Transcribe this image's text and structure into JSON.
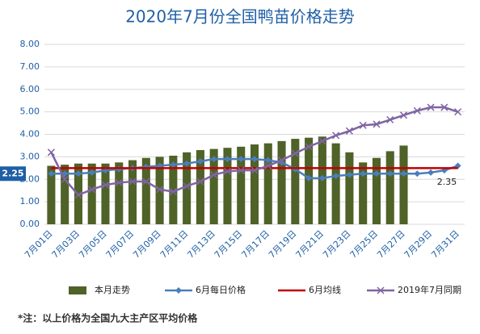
{
  "chart_data": {
    "type": "bar",
    "title": "2020年7月份全国鸭苗价格走势",
    "categories": [
      "7月01日",
      null,
      "7月03日",
      null,
      "7月05日",
      null,
      "7月07日",
      null,
      "7月09日",
      null,
      "7月11日",
      null,
      "7月13日",
      null,
      "7月15日",
      null,
      "7月17日",
      null,
      "7月19日",
      null,
      "7月21日",
      null,
      "7月23日",
      null,
      "7月25日",
      null,
      "7月27日",
      null,
      "7月29日",
      null,
      "7月31日"
    ],
    "ylim": [
      0,
      8
    ],
    "yticks": [
      {
        "value": 0,
        "label": "0.00"
      },
      {
        "value": 1,
        "label": "1.00"
      },
      {
        "value": 2,
        "label": "2.00"
      },
      {
        "value": 3,
        "label": "3.00"
      },
      {
        "value": 4,
        "label": "4.00"
      },
      {
        "value": 5,
        "label": "5.00"
      },
      {
        "value": 6,
        "label": "6.00"
      },
      {
        "value": 7,
        "label": "7.00"
      },
      {
        "value": 8,
        "label": "8.00"
      }
    ],
    "grid": true,
    "legend": "bottom",
    "series": [
      {
        "name": "本月走势",
        "type": "bar",
        "color": "#4f6228",
        "values": [
          2.6,
          2.65,
          2.7,
          2.7,
          2.7,
          2.75,
          2.85,
          2.95,
          3.0,
          3.05,
          3.2,
          3.3,
          3.35,
          3.4,
          3.45,
          3.55,
          3.6,
          3.7,
          3.8,
          3.85,
          3.9,
          3.6,
          3.2,
          2.75,
          2.95,
          3.25,
          3.5,
          null,
          null,
          null,
          null
        ]
      },
      {
        "name": "6月每日价格",
        "type": "line",
        "marker": "diamond",
        "color": "#4a7ebb",
        "values": [
          2.25,
          2.25,
          2.25,
          2.3,
          2.4,
          2.45,
          2.5,
          2.55,
          2.6,
          2.65,
          2.7,
          2.8,
          2.9,
          2.9,
          2.9,
          2.9,
          2.85,
          2.75,
          2.45,
          2.05,
          2.05,
          2.15,
          2.2,
          2.25,
          2.25,
          2.25,
          2.25,
          2.25,
          2.3,
          2.4,
          2.6
        ]
      },
      {
        "name": "6月均线",
        "type": "line",
        "marker": "none",
        "color": "#c00000",
        "values": [
          2.5,
          2.5,
          2.5,
          2.5,
          2.5,
          2.5,
          2.5,
          2.5,
          2.5,
          2.5,
          2.5,
          2.5,
          2.5,
          2.5,
          2.5,
          2.5,
          2.5,
          2.5,
          2.5,
          2.5,
          2.5,
          2.5,
          2.5,
          2.5,
          2.5,
          2.5,
          2.5,
          2.5,
          2.5,
          2.5,
          2.5
        ]
      },
      {
        "name": "2019年7月同期",
        "type": "line",
        "marker": "x",
        "color": "#7f64a2",
        "values": [
          3.2,
          2.0,
          1.3,
          1.55,
          1.75,
          1.85,
          1.9,
          1.9,
          1.55,
          1.45,
          1.7,
          1.9,
          2.2,
          2.35,
          2.4,
          2.4,
          2.6,
          2.85,
          3.15,
          3.45,
          3.7,
          3.95,
          4.15,
          4.4,
          4.45,
          4.65,
          4.85,
          5.05,
          5.2,
          5.2,
          5.0
        ]
      }
    ],
    "annotations": [
      "2.25",
      "2.35"
    ],
    "footnote": "*注：以上价格为全国九大主产区平均价格"
  }
}
